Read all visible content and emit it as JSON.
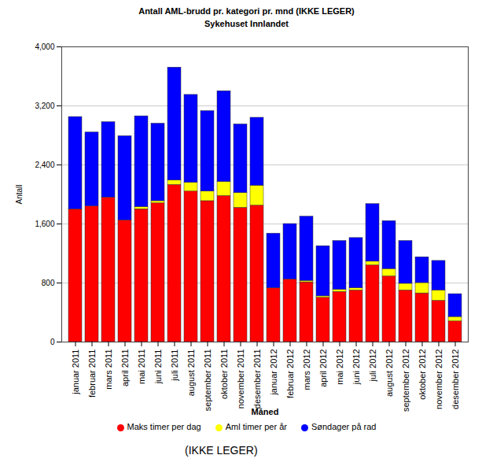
{
  "chart_data": {
    "type": "bar",
    "title": "Antall AML-brudd pr. kategori pr. mnd (IKKE LEGER)",
    "subtitle": "Sykehuset Innlandet",
    "caption": "(IKKE LEGER)",
    "x_label": "Måned",
    "y_label": "Antall",
    "stacked": true,
    "grid": true,
    "legend": "bottom",
    "categories": [
      "januar 2011",
      "februar 2011",
      "mars 2011",
      "april 2011",
      "mai 2011",
      "juni 2011",
      "juli 2011",
      "august 2011",
      "september 2011",
      "oktober 2011",
      "november 2011",
      "desember 2011",
      "januar 2012",
      "februar 2012",
      "mars 2012",
      "april 2012",
      "mai 2012",
      "juni 2012",
      "juli 2012",
      "august 2012",
      "september 2012",
      "oktober 2012",
      "november 2012",
      "desember 2012"
    ],
    "series": [
      {
        "name": "Maks timer per dag",
        "color": "#ff0000",
        "values": [
          1800,
          1840,
          1960,
          1650,
          1800,
          1880,
          2130,
          2040,
          1910,
          1980,
          1820,
          1850,
          730,
          850,
          810,
          600,
          680,
          700,
          1040,
          890,
          700,
          660,
          560,
          280
        ]
      },
      {
        "name": "Aml timer per år",
        "color": "#ffff00",
        "values": [
          0,
          0,
          0,
          0,
          30,
          30,
          60,
          120,
          130,
          190,
          200,
          270,
          0,
          0,
          20,
          20,
          30,
          30,
          50,
          100,
          90,
          140,
          140,
          60
        ]
      },
      {
        "name": "Søndager på rad",
        "color": "#0000ff",
        "values": [
          1250,
          1000,
          1020,
          1140,
          1230,
          1050,
          1530,
          1190,
          1090,
          1230,
          930,
          920,
          740,
          750,
          870,
          680,
          660,
          680,
          780,
          650,
          580,
          350,
          400,
          310
        ]
      }
    ],
    "ylim": [
      0,
      4000
    ],
    "yticks": [
      0,
      800,
      {
        "value": 1600,
        "label": "1,600"
      },
      {
        "value": 2400,
        "label": "2,400"
      },
      {
        "value": 3200,
        "label": "3,200"
      },
      {
        "value": 4000,
        "label": "4,000"
      }
    ]
  }
}
